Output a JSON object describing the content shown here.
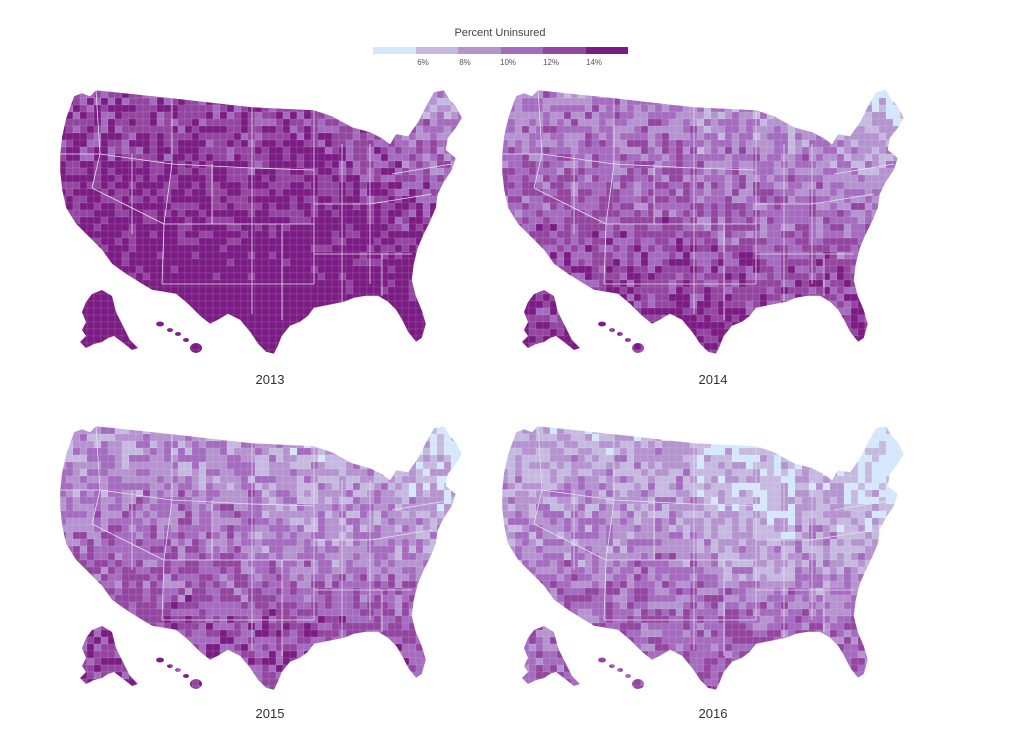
{
  "legend": {
    "title": "Percent Uninsured",
    "ticks": [
      "6%",
      "8%",
      "10%",
      "12%",
      "14%"
    ],
    "colors": [
      "#d5e7fb",
      "#c5b9e0",
      "#b493cf",
      "#a46bbf",
      "#93469f",
      "#7b1c84"
    ]
  },
  "maps": [
    {
      "year": "2013",
      "level": 5.0
    },
    {
      "year": "2014",
      "level": 3.6
    },
    {
      "year": "2015",
      "level": 3.1
    },
    {
      "year": "2016",
      "level": 2.5
    }
  ],
  "palette": {
    "state_border": "#e9dff0",
    "county_border": "#ffffff"
  }
}
